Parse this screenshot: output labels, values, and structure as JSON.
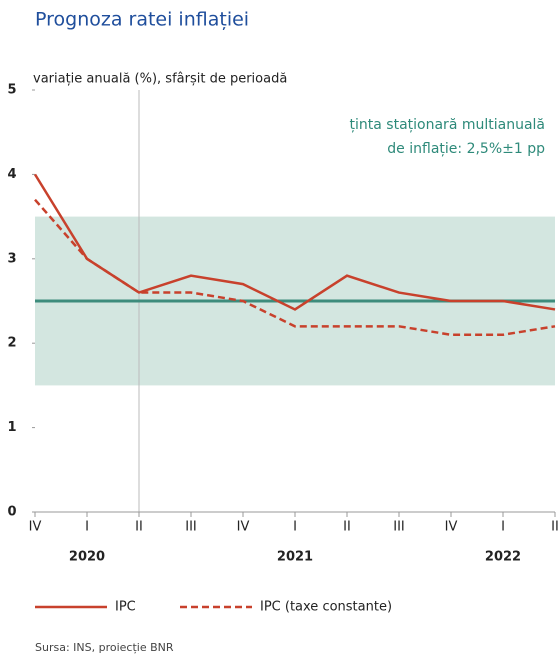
{
  "chart_data": {
    "type": "line",
    "title": "Prognoza ratei inflației",
    "subtitle": "variație anuală (%), sfârșit de perioadă",
    "annotation": [
      "ținta staționară multianuală",
      "de inflație: 2,5%±1 pp"
    ],
    "target": 2.5,
    "target_band": [
      1.5,
      3.5
    ],
    "target_color": "#3d8c7c",
    "band_color": "#d3e6e0",
    "categories": [
      "IV",
      "I",
      "II",
      "III",
      "IV",
      "I",
      "II",
      "III",
      "IV",
      "I",
      "II"
    ],
    "years": [
      "2020",
      "2021",
      "2022"
    ],
    "series": [
      {
        "name": "IPC",
        "color": "#c8412c",
        "style": "solid",
        "values": [
          4.0,
          3.0,
          2.6,
          2.8,
          2.7,
          2.4,
          2.8,
          2.6,
          2.5,
          2.5,
          2.4
        ]
      },
      {
        "name": "IPC (taxe constante)",
        "color": "#c8412c",
        "style": "dashed",
        "values": [
          3.7,
          3.0,
          2.6,
          2.6,
          2.5,
          2.2,
          2.2,
          2.2,
          2.1,
          2.1,
          2.2
        ]
      }
    ],
    "ylim": [
      0,
      5
    ],
    "yticks": [
      0,
      1,
      2,
      3,
      4,
      5
    ],
    "source": "Sursa: INS, proiecție BNR"
  }
}
